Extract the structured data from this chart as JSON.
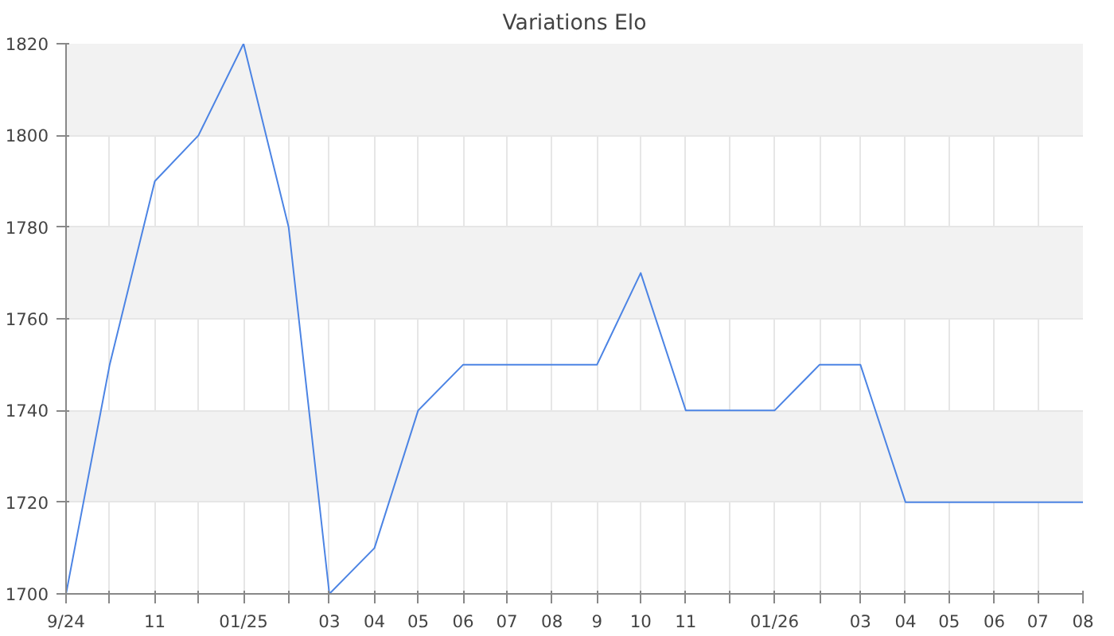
{
  "chart_data": {
    "type": "line",
    "title": "Variations Elo",
    "x": [
      "2024-09",
      "2024-10",
      "2024-11",
      "2024-12",
      "2025-01",
      "2025-02",
      "2025-03",
      "2025-04",
      "2025-05",
      "2025-06",
      "2025-07",
      "2025-08",
      "2025-09",
      "2025-10",
      "2025-11",
      "2025-12",
      "2026-01",
      "2026-02",
      "2026-03",
      "2026-04",
      "2026-05",
      "2026-06",
      "2026-07",
      "2026-08"
    ],
    "series": [
      {
        "color": "#4c84e4",
        "values": [
          1700,
          1750,
          1790,
          1800,
          1820,
          1780,
          1700,
          1710,
          1740,
          1750,
          1750,
          1750,
          1750,
          1770,
          1740,
          1740,
          1740,
          1750,
          1750,
          1720,
          1720,
          1720,
          1720,
          1720
        ]
      }
    ],
    "xlim": [
      "2024-09",
      "2026-08"
    ],
    "xticks": [
      {
        "value": "2024-09",
        "label": "9/24"
      },
      {
        "value": "2024-10",
        "label": null
      },
      {
        "value": "2024-11",
        "label": "11"
      },
      {
        "value": "2024-12",
        "label": null
      },
      {
        "value": "2025-01",
        "label": "01/25"
      },
      {
        "value": "2025-02",
        "label": null
      },
      {
        "value": "2025-03",
        "label": "03"
      },
      {
        "value": "2025-04",
        "label": "04"
      },
      {
        "value": "2025-05",
        "label": "05"
      },
      {
        "value": "2025-06",
        "label": "06"
      },
      {
        "value": "2025-07",
        "label": "07"
      },
      {
        "value": "2025-08",
        "label": "08"
      },
      {
        "value": "2025-09",
        "label": "9"
      },
      {
        "value": "2025-10",
        "label": "10"
      },
      {
        "value": "2025-11",
        "label": "11"
      },
      {
        "value": "2025-12",
        "label": null
      },
      {
        "value": "2026-01",
        "label": "01/26"
      },
      {
        "value": "2026-02",
        "label": null
      },
      {
        "value": "2026-03",
        "label": "03"
      },
      {
        "value": "2026-04",
        "label": "04"
      },
      {
        "value": "2026-05",
        "label": "05"
      },
      {
        "value": "2026-06",
        "label": "06"
      },
      {
        "value": "2026-07",
        "label": "07"
      },
      {
        "value": "2026-08",
        "label": "08"
      }
    ],
    "ylim": [
      1700,
      1820
    ],
    "yticks": [
      1700,
      1720,
      1740,
      1760,
      1780,
      1800,
      1820
    ],
    "grid": true,
    "marker": "none",
    "line_style": "solid"
  }
}
